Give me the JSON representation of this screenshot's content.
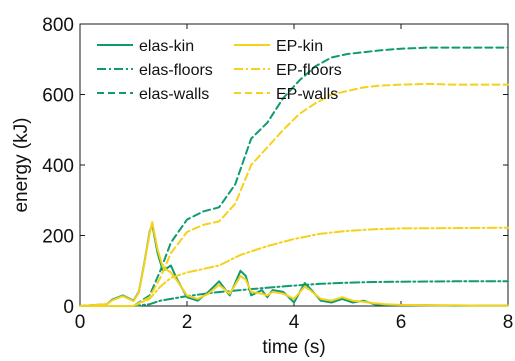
{
  "chart_data": {
    "type": "line",
    "title": "",
    "xlabel": "time (s)",
    "ylabel": "energy (kJ)",
    "xlim": [
      0,
      8
    ],
    "ylim": [
      0,
      800
    ],
    "x_ticks": [
      0,
      2,
      4,
      6,
      8
    ],
    "y_ticks": [
      0,
      200,
      400,
      600,
      800
    ],
    "grid": false,
    "legend_position": "top-left",
    "series": [
      {
        "name": "elas-kin",
        "color": "#0e9b72",
        "style": "solid",
        "x": [
          0,
          0.5,
          0.6,
          0.8,
          1.0,
          1.1,
          1.2,
          1.3,
          1.35,
          1.45,
          1.55,
          1.7,
          1.8,
          2.0,
          2.2,
          2.4,
          2.6,
          2.8,
          3.0,
          3.1,
          3.2,
          3.4,
          3.5,
          3.6,
          3.8,
          4.0,
          4.2,
          4.3,
          4.5,
          4.7,
          4.9,
          5.1,
          5.3,
          5.5,
          5.7,
          6.0,
          6.5,
          7.0,
          7.5,
          8.0
        ],
        "y": [
          0,
          5,
          18,
          30,
          15,
          40,
          120,
          210,
          232,
          150,
          100,
          115,
          80,
          25,
          15,
          40,
          70,
          30,
          100,
          85,
          30,
          45,
          25,
          45,
          40,
          10,
          65,
          50,
          15,
          10,
          20,
          10,
          15,
          5,
          3,
          2,
          2,
          1,
          1,
          1
        ]
      },
      {
        "name": "elas-floors",
        "color": "#0e9b72",
        "style": "dashdot",
        "x": [
          0,
          1.0,
          1.3,
          1.5,
          2.0,
          2.5,
          3.0,
          3.5,
          4.0,
          4.5,
          5.0,
          5.5,
          6.0,
          7.0,
          8.0
        ],
        "y": [
          0,
          0,
          5,
          15,
          28,
          38,
          45,
          52,
          58,
          63,
          66,
          68,
          69,
          70,
          70
        ]
      },
      {
        "name": "elas-walls",
        "color": "#0e9b72",
        "style": "dashed",
        "x": [
          0,
          1.0,
          1.3,
          1.5,
          1.7,
          2.0,
          2.3,
          2.6,
          2.9,
          3.2,
          3.5,
          3.8,
          4.1,
          4.4,
          4.7,
          5.0,
          5.3,
          5.6,
          6.0,
          6.5,
          7.0,
          7.5,
          8.0
        ],
        "y": [
          0,
          0,
          30,
          100,
          180,
          245,
          268,
          280,
          345,
          475,
          520,
          590,
          640,
          680,
          705,
          715,
          720,
          725,
          730,
          733,
          733,
          733,
          733
        ]
      },
      {
        "name": "EP-kin",
        "color": "#f5d21a",
        "style": "solid",
        "x": [
          0,
          0.5,
          0.6,
          0.8,
          1.0,
          1.1,
          1.2,
          1.3,
          1.35,
          1.45,
          1.55,
          1.7,
          1.8,
          2.0,
          2.2,
          2.4,
          2.6,
          2.8,
          3.0,
          3.1,
          3.2,
          3.4,
          3.5,
          3.6,
          3.8,
          4.0,
          4.2,
          4.3,
          4.5,
          4.7,
          4.9,
          5.1,
          5.3,
          5.5,
          5.7,
          6.0,
          6.5,
          7.0,
          7.5,
          8.0
        ],
        "y": [
          0,
          5,
          16,
          28,
          14,
          38,
          118,
          205,
          238,
          160,
          110,
          95,
          75,
          30,
          20,
          35,
          60,
          35,
          85,
          75,
          40,
          35,
          30,
          40,
          35,
          20,
          55,
          45,
          20,
          15,
          25,
          15,
          12,
          8,
          5,
          3,
          2,
          2,
          1,
          1
        ]
      },
      {
        "name": "EP-floors",
        "color": "#f5d21a",
        "style": "dashdot",
        "x": [
          0,
          1.0,
          1.3,
          1.5,
          1.7,
          2.0,
          2.3,
          2.6,
          3.0,
          3.5,
          4.0,
          4.5,
          5.0,
          5.5,
          6.0,
          7.0,
          8.0
        ],
        "y": [
          0,
          0,
          20,
          55,
          80,
          95,
          105,
          115,
          145,
          170,
          190,
          205,
          213,
          218,
          220,
          221,
          222
        ]
      },
      {
        "name": "EP-walls",
        "color": "#f5d21a",
        "style": "dashed",
        "x": [
          0,
          1.0,
          1.3,
          1.5,
          1.7,
          2.0,
          2.3,
          2.6,
          2.9,
          3.2,
          3.5,
          3.8,
          4.1,
          4.4,
          4.7,
          5.0,
          5.3,
          5.6,
          6.0,
          6.5,
          7.0,
          7.5,
          8.0
        ],
        "y": [
          0,
          0,
          25,
          80,
          150,
          210,
          230,
          240,
          290,
          400,
          450,
          500,
          545,
          575,
          600,
          610,
          620,
          625,
          628,
          630,
          628,
          628,
          628
        ]
      }
    ]
  }
}
